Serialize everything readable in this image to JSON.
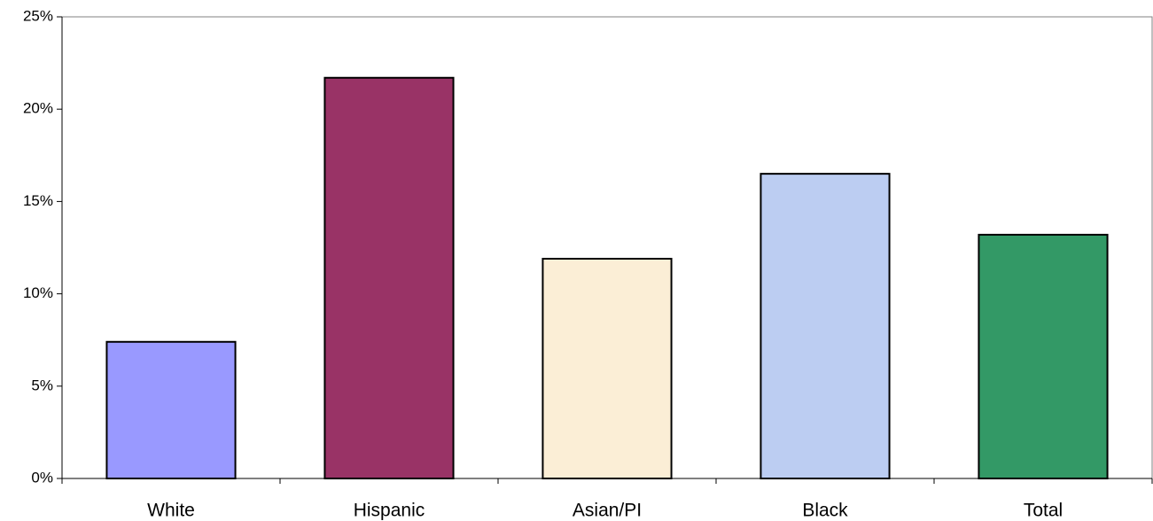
{
  "chart_data": {
    "type": "bar",
    "categories": [
      "White",
      "Hispanic",
      "Asian/PI",
      "Black",
      "Total"
    ],
    "values": [
      7.4,
      21.7,
      11.9,
      16.5,
      13.2
    ],
    "colors": [
      "#9999ff",
      "#993366",
      "#fbeed6",
      "#bccdf2",
      "#339966"
    ],
    "ylim": [
      0,
      25
    ],
    "yticks": [
      {
        "value": 0,
        "label": "0%"
      },
      {
        "value": 5,
        "label": "5%"
      },
      {
        "value": 10,
        "label": "10%"
      },
      {
        "value": 15,
        "label": "15%"
      },
      {
        "value": 20,
        "label": "20%"
      },
      {
        "value": 25,
        "label": "25%"
      }
    ]
  }
}
